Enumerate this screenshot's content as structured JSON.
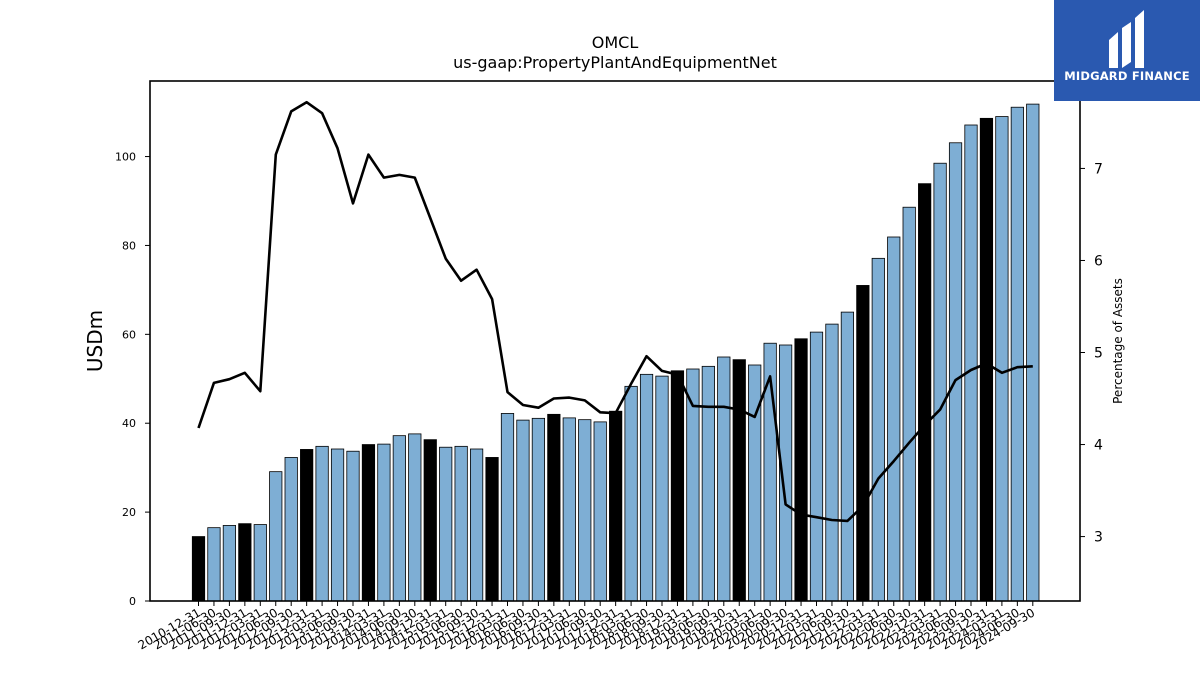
{
  "chart_data": {
    "type": "bar",
    "title": "OMCL",
    "subtitle": "us-gaap:PropertyPlantAndEquipmentNet",
    "ylabel": "USDm",
    "y2label": "Percentage of Assets",
    "ylim": [
      0,
      117
    ],
    "y2lim": [
      2.3,
      7.95
    ],
    "yticks": [
      0,
      20,
      40,
      60,
      80,
      100
    ],
    "y2ticks": [
      3,
      4,
      5,
      6,
      7
    ],
    "grid": false,
    "colors": {
      "bar": "#7eaed4",
      "bar_highlight": "#000000",
      "line": "#000000"
    },
    "categories": [
      "2010-12-31",
      "2011-06-30",
      "2011-09-30",
      "2011-12-31",
      "2012-03-31",
      "2012-06-30",
      "2012-09-30",
      "2012-12-31",
      "2013-03-31",
      "2013-06-30",
      "2013-09-30",
      "2013-12-31",
      "2014-03-31",
      "2014-06-30",
      "2014-09-30",
      "2014-12-31",
      "2015-03-31",
      "2015-06-30",
      "2015-09-30",
      "2015-12-31",
      "2016-03-31",
      "2016-06-30",
      "2016-09-30",
      "2016-12-31",
      "2017-03-31",
      "2017-06-30",
      "2017-09-30",
      "2017-12-31",
      "2018-03-31",
      "2018-06-30",
      "2018-09-30",
      "2018-12-31",
      "2019-03-31",
      "2019-06-30",
      "2019-09-30",
      "2019-12-31",
      "2020-03-31",
      "2020-06-30",
      "2020-09-30",
      "2020-12-31",
      "2021-03-31",
      "2021-06-30",
      "2021-09-30",
      "2021-12-31",
      "2022-03-31",
      "2022-06-30",
      "2022-09-30",
      "2022-12-31",
      "2023-03-31",
      "2023-06-30",
      "2023-09-30",
      "2023-12-31",
      "2024-03-31",
      "2024-06-30",
      "2024-09-30"
    ],
    "series": [
      {
        "type": "bar",
        "values": [
          14.5,
          16.5,
          17,
          17.4,
          17.2,
          29.1,
          32.3,
          34.1,
          34.8,
          34.2,
          33.7,
          35.2,
          35.3,
          37.2,
          37.6,
          36.3,
          34.6,
          34.8,
          34.2,
          32.3,
          42.2,
          40.7,
          41.1,
          42.0,
          41.2,
          40.8,
          40.3,
          42.7,
          48.3,
          51.0,
          50.6,
          51.8,
          52.2,
          52.8,
          54.9,
          54.3,
          53.1,
          58.0,
          57.6,
          59.0,
          60.5,
          62.3,
          65.0,
          71.0,
          77.1,
          81.9,
          88.6,
          93.9,
          98.5,
          103.1,
          107.1,
          108.6,
          109.0,
          111.1,
          111.8
        ],
        "highlight": [
          true,
          false,
          false,
          true,
          false,
          false,
          false,
          true,
          false,
          false,
          false,
          true,
          false,
          false,
          false,
          true,
          false,
          false,
          false,
          true,
          false,
          false,
          false,
          true,
          false,
          false,
          false,
          true,
          false,
          false,
          false,
          true,
          false,
          false,
          false,
          true,
          false,
          false,
          false,
          true,
          false,
          false,
          false,
          true,
          false,
          false,
          false,
          true,
          false,
          false,
          false,
          true,
          false,
          false,
          false
        ]
      },
      {
        "type": "line",
        "axis": "right",
        "values": [
          4.18,
          4.67,
          4.71,
          4.78,
          4.58,
          7.15,
          7.62,
          7.72,
          7.6,
          7.22,
          6.62,
          7.15,
          6.9,
          6.93,
          6.9,
          6.46,
          6.02,
          5.78,
          5.9,
          5.58,
          4.57,
          4.43,
          4.4,
          4.5,
          4.51,
          4.48,
          4.35,
          4.34,
          4.66,
          4.96,
          4.8,
          4.76,
          4.42,
          4.41,
          4.41,
          4.38,
          4.3,
          4.74,
          3.35,
          3.24,
          3.21,
          3.18,
          3.17,
          3.33,
          3.63,
          3.82,
          4.02,
          4.21,
          4.38,
          4.7,
          4.81,
          4.88,
          4.78,
          4.84,
          4.85
        ]
      }
    ]
  },
  "logo": {
    "text": "MIDGARD FINANCE"
  }
}
